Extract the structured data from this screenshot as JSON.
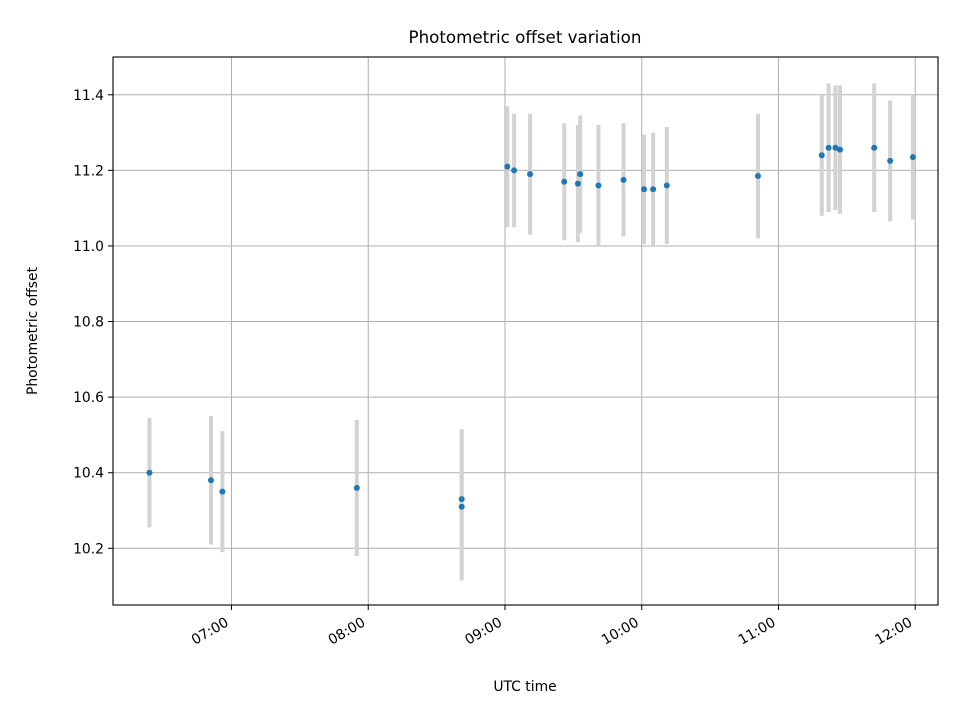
{
  "chart_data": {
    "type": "scatter",
    "title": "Photometric offset variation",
    "xlabel": "UTC time",
    "ylabel": "Photometric offset",
    "x_unit": "UTC time (HH:MM)",
    "xlim": [
      "06:08",
      "12:10"
    ],
    "ylim": [
      10.05,
      11.5
    ],
    "grid": true,
    "x_tick_labels": [
      "07:00",
      "08:00",
      "09:00",
      "10:00",
      "11:00",
      "12:00"
    ],
    "y_tick_labels": [
      "10.2",
      "10.4",
      "10.6",
      "10.8",
      "11.0",
      "11.2",
      "11.4"
    ],
    "colors": {
      "points": "#1f77b4",
      "error_bars": "#d3d3d3",
      "grid": "#b0b0b0"
    },
    "points": [
      {
        "x": "06:24",
        "y": 10.4,
        "err": 0.145
      },
      {
        "x": "06:51",
        "y": 10.38,
        "err": 0.17
      },
      {
        "x": "06:56",
        "y": 10.35,
        "err": 0.16
      },
      {
        "x": "07:55",
        "y": 10.36,
        "err": 0.18
      },
      {
        "x": "08:41",
        "y": 10.33,
        "err": 0.185
      },
      {
        "x": "08:41",
        "y": 10.31,
        "err": 0.195
      },
      {
        "x": "09:01",
        "y": 11.21,
        "err": 0.16
      },
      {
        "x": "09:04",
        "y": 11.2,
        "err": 0.15
      },
      {
        "x": "09:11",
        "y": 11.19,
        "err": 0.16
      },
      {
        "x": "09:26",
        "y": 11.17,
        "err": 0.155
      },
      {
        "x": "09:32",
        "y": 11.165,
        "err": 0.155
      },
      {
        "x": "09:33",
        "y": 11.19,
        "err": 0.155
      },
      {
        "x": "09:41",
        "y": 11.16,
        "err": 0.16
      },
      {
        "x": "09:52",
        "y": 11.175,
        "err": 0.15
      },
      {
        "x": "10:01",
        "y": 11.15,
        "err": 0.145
      },
      {
        "x": "10:05",
        "y": 11.15,
        "err": 0.15
      },
      {
        "x": "10:11",
        "y": 11.16,
        "err": 0.155
      },
      {
        "x": "10:51",
        "y": 11.185,
        "err": 0.165
      },
      {
        "x": "11:19",
        "y": 11.24,
        "err": 0.16
      },
      {
        "x": "11:22",
        "y": 11.26,
        "err": 0.17
      },
      {
        "x": "11:25",
        "y": 11.26,
        "err": 0.165
      },
      {
        "x": "11:27",
        "y": 11.255,
        "err": 0.17
      },
      {
        "x": "11:42",
        "y": 11.26,
        "err": 0.17
      },
      {
        "x": "11:49",
        "y": 11.225,
        "err": 0.16
      },
      {
        "x": "11:59",
        "y": 11.235,
        "err": 0.165
      }
    ]
  }
}
